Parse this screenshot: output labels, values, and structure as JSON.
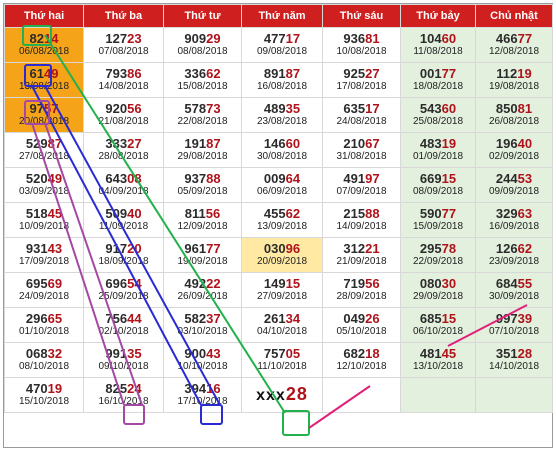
{
  "headers": [
    "Thứ hai",
    "Thứ ba",
    "Thứ tư",
    "Thứ năm",
    "Thứ sáu",
    "Thứ bảy",
    "Chủ nhật"
  ],
  "rows": [
    [
      [
        "8·2·14",
        "06/08/2018"
      ],
      [
        "12723",
        "07/08/2018"
      ],
      [
        "90929",
        "08/08/2018"
      ],
      [
        "47717",
        "09/08/2018"
      ],
      [
        "93681",
        "10/08/2018"
      ],
      [
        "10460",
        "11/08/2018"
      ],
      [
        "46677",
        "12/08/2018"
      ]
    ],
    [
      [
        "6·1·49",
        "13/08/2018"
      ],
      [
        "79386",
        "14/08/2018"
      ],
      [
        "33662",
        "15/08/2018"
      ],
      [
        "89187",
        "16/08/2018"
      ],
      [
        "92527",
        "17/08/2018"
      ],
      [
        "00177",
        "18/08/2018"
      ],
      [
        "11219",
        "19/08/2018"
      ]
    ],
    [
      [
        "9·7·57",
        "20/08/2018"
      ],
      [
        "92056",
        "21/08/2018"
      ],
      [
        "57873",
        "22/08/2018"
      ],
      [
        "48935",
        "23/08/2018"
      ],
      [
        "63517",
        "24/08/2018"
      ],
      [
        "54360",
        "25/08/2018"
      ],
      [
        "85081",
        "26/08/2018"
      ]
    ],
    [
      [
        "52987",
        "27/08/2018"
      ],
      [
        "33327",
        "28/08/2018"
      ],
      [
        "19187",
        "29/08/2018"
      ],
      [
        "14660",
        "30/08/2018"
      ],
      [
        "21067",
        "31/08/2018"
      ],
      [
        "48319",
        "01/09/2018"
      ],
      [
        "19640",
        "02/09/2018"
      ]
    ],
    [
      [
        "52049",
        "03/09/2018"
      ],
      [
        "64308",
        "04/09/2018"
      ],
      [
        "93788",
        "05/09/2018"
      ],
      [
        "00964",
        "06/09/2018"
      ],
      [
        "49197",
        "07/09/2018"
      ],
      [
        "66915",
        "08/09/2018"
      ],
      [
        "24453",
        "09/09/2018"
      ]
    ],
    [
      [
        "51845",
        "10/09/2018"
      ],
      [
        "50940",
        "11/09/2018"
      ],
      [
        "81156",
        "12/09/2018"
      ],
      [
        "45562",
        "13/09/2018"
      ],
      [
        "21588",
        "14/09/2018"
      ],
      [
        "59077",
        "15/09/2018"
      ],
      [
        "32963",
        "16/09/2018"
      ]
    ],
    [
      [
        "93143",
        "17/09/2018"
      ],
      [
        "91720",
        "18/09/2018"
      ],
      [
        "96177",
        "19/09/2018"
      ],
      [
        "03096",
        "20/09/2018"
      ],
      [
        "31221",
        "21/09/2018"
      ],
      [
        "29578",
        "22/09/2018"
      ],
      [
        "12662",
        "23/09/2018"
      ]
    ],
    [
      [
        "69569",
        "24/09/2018"
      ],
      [
        "69654",
        "25/09/2018"
      ],
      [
        "49222",
        "26/09/2018"
      ],
      [
        "14915",
        "27/09/2018"
      ],
      [
        "71956",
        "28/09/2018"
      ],
      [
        "08030",
        "29/09/2018"
      ],
      [
        "68455",
        "30/09/2018"
      ]
    ],
    [
      [
        "29665",
        "01/10/2018"
      ],
      [
        "75644",
        "02/10/2018"
      ],
      [
        "58237",
        "03/10/2018"
      ],
      [
        "26134",
        "04/10/2018"
      ],
      [
        "04926",
        "05/10/2018"
      ],
      [
        "68515",
        "06/10/2018"
      ],
      [
        "99739",
        "07/10/2018"
      ]
    ],
    [
      [
        "06832",
        "08/10/2018"
      ],
      [
        "99135",
        "09/10/2018"
      ],
      [
        "90043",
        "10/10/2018"
      ],
      [
        "75705",
        "11/10/2018"
      ],
      [
        "68218",
        "12/10/2018"
      ],
      [
        "48145",
        "13/10/2018"
      ],
      [
        "35128",
        "14/10/2018"
      ]
    ],
    [
      [
        "47019",
        "15/10/2018"
      ],
      [
        "82524",
        "16/10/2018"
      ],
      [
        "39416",
        "17/10/2018"
      ],
      [
        "",
        ""
      ],
      [
        "",
        ""
      ],
      [
        "",
        ""
      ],
      [
        "",
        ""
      ]
    ]
  ],
  "prediction": {
    "prefix": "xxx",
    "digits": "28"
  },
  "colors": {
    "header": "#cf1f1f",
    "weekend": "#e3f0dd",
    "highlight_orange": "#f5a318",
    "highlight_yellow": "#ffe9a3",
    "green_line": "#22b14c",
    "blue_line": "#2a2ad4",
    "purple_line": "#a349a4",
    "pink_line": "#e0217a"
  }
}
